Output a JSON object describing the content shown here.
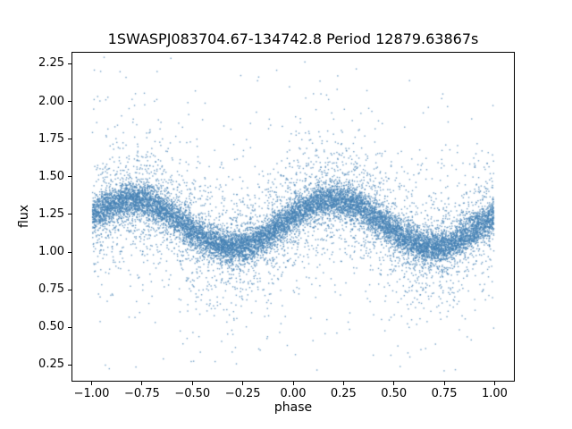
{
  "chart_data": {
    "type": "scatter",
    "title": "1SWASPJ083704.67-134742.8 Period 12879.63867s",
    "xlabel": "phase",
    "ylabel": "flux",
    "xlim": [
      -1.1,
      1.1
    ],
    "ylim": [
      0.14,
      2.33
    ],
    "grid": false,
    "legend": "none",
    "x_ticks": [
      {
        "value": -1.0,
        "label": "−1.00"
      },
      {
        "value": -0.75,
        "label": "−0.75"
      },
      {
        "value": -0.5,
        "label": "−0.50"
      },
      {
        "value": -0.25,
        "label": "−0.25"
      },
      {
        "value": 0.0,
        "label": "0.00"
      },
      {
        "value": 0.25,
        "label": "0.25"
      },
      {
        "value": 0.5,
        "label": "0.50"
      },
      {
        "value": 0.75,
        "label": "0.75"
      },
      {
        "value": 1.0,
        "label": "1.00"
      }
    ],
    "y_ticks": [
      {
        "value": 0.25,
        "label": "0.25"
      },
      {
        "value": 0.5,
        "label": "0.50"
      },
      {
        "value": 0.75,
        "label": "0.75"
      },
      {
        "value": 1.0,
        "label": "1.00"
      },
      {
        "value": 1.25,
        "label": "1.25"
      },
      {
        "value": 1.5,
        "label": "1.50"
      },
      {
        "value": 1.75,
        "label": "1.75"
      },
      {
        "value": 2.0,
        "label": "2.00"
      },
      {
        "value": 2.25,
        "label": "2.25"
      }
    ],
    "marker_color": "#4682b4",
    "marker_alpha": 0.75,
    "marker_size_px": 1.4,
    "pattern": "phase-folded light curve: flux oscillates sinusoidally with period 1.0 in phase, maxima near phase 0.2 and -0.8 at flux ~1.35, minima near phase -0.3 and 0.7 at flux ~1.03, dense core band with wide noisy halo spanning ~0.25 to ~2.25",
    "model": {
      "seed": 12,
      "baseline_flux": 1.19,
      "amplitude": 0.16,
      "peak_phase": 0.2,
      "phase_range": [
        -1.0,
        1.0
      ],
      "flux_clip": [
        0.2,
        2.3
      ],
      "components": [
        {
          "name": "core",
          "n": 11000,
          "sigma": 0.055
        },
        {
          "name": "halo",
          "n": 3500,
          "sigma": 0.2
        },
        {
          "name": "outliers",
          "n": 700,
          "sigma": 0.5
        }
      ]
    }
  }
}
